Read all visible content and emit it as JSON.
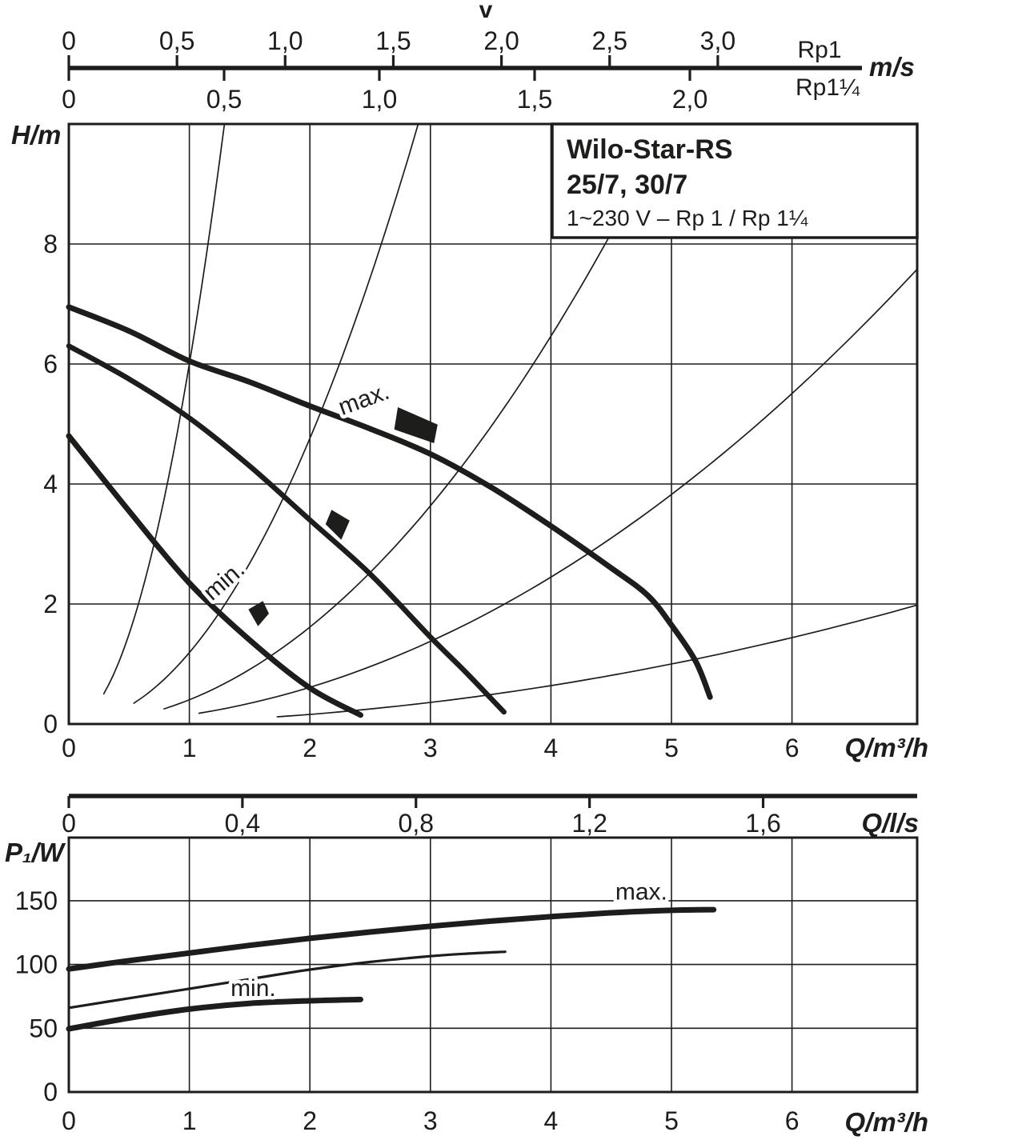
{
  "figure": {
    "top_axis": {
      "title": "v",
      "unit": "m/s",
      "scales": [
        {
          "name": "Rp1",
          "ticks": [
            {
              "label": "0",
              "v": 0
            },
            {
              "label": "0,5",
              "v": 0.5
            },
            {
              "label": "1,0",
              "v": 1.0
            },
            {
              "label": "1,5",
              "v": 1.5
            },
            {
              "label": "2,0",
              "v": 2.0
            },
            {
              "label": "2,5",
              "v": 2.5
            },
            {
              "label": "3,0",
              "v": 3.0
            }
          ]
        },
        {
          "name": "Rp1¼",
          "ticks": [
            {
              "label": "0",
              "v": 0
            },
            {
              "label": "0,5",
              "v": 0.5
            },
            {
              "label": "1,0",
              "v": 1.0
            },
            {
              "label": "1,5",
              "v": 1.5
            },
            {
              "label": "2,0",
              "v": 2.0
            }
          ]
        }
      ]
    },
    "brand_box": {
      "line1": "Wilo-Star-RS",
      "line2": "25/7, 30/7",
      "line3": "1~230 V – Rp 1 / Rp 1¼"
    },
    "flow_axis_ls": {
      "unit": "Q/l/s",
      "ticks": [
        {
          "label": "0",
          "v": 0
        },
        {
          "label": "0,4",
          "v": 0.4
        },
        {
          "label": "0,8",
          "v": 0.8
        },
        {
          "label": "1,2",
          "v": 1.2
        },
        {
          "label": "1,6",
          "v": 1.6
        }
      ]
    },
    "ink_color": "#1d1d1b"
  },
  "chart_data": [
    {
      "type": "line",
      "name": "head-flow-chart",
      "title": "Wilo-Star-RS 25/7, 30/7 pump curves",
      "xlabel": "Q/m³/h",
      "ylabel": "H/m",
      "xlim": [
        0,
        7.04
      ],
      "ylim": [
        0,
        10
      ],
      "grid": true,
      "legend_position": "none",
      "x_ticks": [
        0,
        1,
        2,
        3,
        4,
        5,
        6
      ],
      "y_ticks": [
        0,
        2,
        4,
        6,
        8
      ],
      "series": [
        {
          "name": "max",
          "width": 7,
          "points": [
            [
              0,
              6.95
            ],
            [
              0.5,
              6.55
            ],
            [
              1,
              6.05
            ],
            [
              1.5,
              5.7
            ],
            [
              2,
              5.3
            ],
            [
              2.5,
              4.92
            ],
            [
              3,
              4.5
            ],
            [
              3.5,
              3.95
            ],
            [
              4,
              3.3
            ],
            [
              4.5,
              2.6
            ],
            [
              4.8,
              2.15
            ],
            [
              5,
              1.65
            ],
            [
              5.2,
              1.05
            ],
            [
              5.32,
              0.45
            ]
          ]
        },
        {
          "name": "mid",
          "width": 6.5,
          "points": [
            [
              0,
              6.3
            ],
            [
              0.5,
              5.75
            ],
            [
              1,
              5.1
            ],
            [
              1.5,
              4.3
            ],
            [
              2,
              3.4
            ],
            [
              2.5,
              2.5
            ],
            [
              3,
              1.45
            ],
            [
              3.3,
              0.85
            ],
            [
              3.61,
              0.2
            ]
          ]
        },
        {
          "name": "min",
          "width": 7,
          "points": [
            [
              0,
              4.8
            ],
            [
              0.5,
              3.55
            ],
            [
              1,
              2.35
            ],
            [
              1.5,
              1.4
            ],
            [
              2,
              0.6
            ],
            [
              2.42,
              0.15
            ]
          ]
        }
      ],
      "system_curves": [
        {
          "k": 6.0,
          "q_start": 0.29,
          "q_end": 1.29
        },
        {
          "k": 1.19,
          "q_start": 0.54,
          "q_end": 2.9
        },
        {
          "k": 0.404,
          "q_start": 0.79,
          "q_end": 4.48
        },
        {
          "k": 0.153,
          "q_start": 1.08,
          "q_end": 7.038
        },
        {
          "k": 0.04,
          "q_start": 1.73,
          "q_end": 7.038
        }
      ],
      "annotations": [
        {
          "text": "max.",
          "q": 2.47,
          "h": 5.29,
          "rotate": -20
        },
        {
          "text": "min.",
          "q": 1.33,
          "h": 2.29,
          "rotate": -41
        }
      ],
      "markers": [
        {
          "name": "max-speed-marker",
          "points": [
            [
              2.73,
              5.28
            ],
            [
              3.06,
              4.99
            ],
            [
              3.03,
              4.68
            ],
            [
              2.7,
              4.91
            ]
          ]
        },
        {
          "name": "mid-speed-marker",
          "points": [
            [
              2.18,
              3.57
            ],
            [
              2.33,
              3.39
            ],
            [
              2.26,
              3.07
            ],
            [
              2.13,
              3.33
            ]
          ]
        },
        {
          "name": "min-speed-marker",
          "points": [
            [
              1.61,
              2.05
            ],
            [
              1.66,
              1.84
            ],
            [
              1.57,
              1.63
            ],
            [
              1.49,
              1.91
            ]
          ]
        }
      ]
    },
    {
      "type": "line",
      "name": "power-flow-chart",
      "title": "Power input P1 vs flow",
      "xlabel": "Q/m³/h",
      "ylabel": "P₁/W",
      "xlim": [
        0,
        7.04
      ],
      "ylim": [
        0,
        200
      ],
      "grid": true,
      "legend_position": "none",
      "x_ticks": [
        0,
        1,
        2,
        3,
        4,
        5,
        6
      ],
      "y_ticks": [
        0,
        50,
        100,
        150
      ],
      "series": [
        {
          "name": "max",
          "width": 7,
          "points": [
            [
              0,
              96.5
            ],
            [
              0.5,
              103
            ],
            [
              1,
              109
            ],
            [
              1.5,
              115
            ],
            [
              2,
              120.5
            ],
            [
              2.5,
              125.5
            ],
            [
              3,
              130
            ],
            [
              3.5,
              134
            ],
            [
              4,
              137.5
            ],
            [
              4.5,
              140.5
            ],
            [
              5,
              142.5
            ],
            [
              5.35,
              143
            ]
          ]
        },
        {
          "name": "mid",
          "width": 3.2,
          "points": [
            [
              0,
              66
            ],
            [
              0.5,
              73.5
            ],
            [
              1,
              81
            ],
            [
              1.5,
              88.5
            ],
            [
              2,
              96
            ],
            [
              2.5,
              102
            ],
            [
              3,
              106.5
            ],
            [
              3.3,
              108.5
            ],
            [
              3.62,
              110
            ]
          ]
        },
        {
          "name": "min",
          "width": 7,
          "points": [
            [
              0,
              49.5
            ],
            [
              0.5,
              58
            ],
            [
              1,
              65
            ],
            [
              1.5,
              69.5
            ],
            [
              2,
              71.5
            ],
            [
              2.42,
              72.5
            ]
          ]
        }
      ],
      "annotations": [
        {
          "text": "max.",
          "q": 4.75,
          "p": 151,
          "rotate": 0
        },
        {
          "text": "min.",
          "q": 1.53,
          "p": 75.3,
          "rotate": 0
        }
      ]
    }
  ]
}
